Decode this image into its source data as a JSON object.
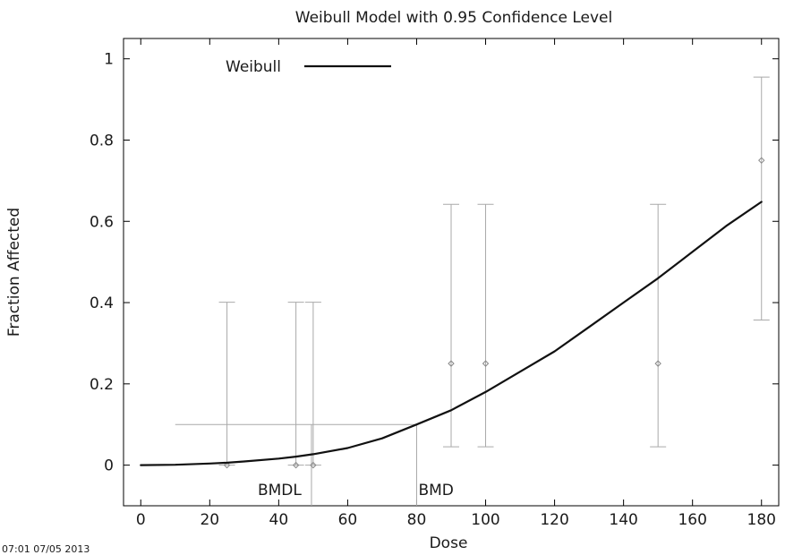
{
  "chart_data": {
    "type": "line",
    "title": "Weibull Model with 0.95 Confidence Level",
    "xlabel": "Dose",
    "ylabel": "Fraction Affected",
    "xlim": [
      -5,
      185
    ],
    "ylim": [
      -0.1,
      1.05
    ],
    "xticks": [
      0,
      20,
      40,
      60,
      80,
      100,
      120,
      140,
      160,
      180
    ],
    "yticks": [
      0,
      0.2,
      0.4,
      0.6,
      0.8,
      1
    ],
    "xtick_labels": [
      "0",
      "20",
      "40",
      "60",
      "80",
      "100",
      "120",
      "140",
      "160",
      "180"
    ],
    "ytick_labels": [
      "0",
      "0.2",
      "0.4",
      "0.6",
      "0.8",
      "1"
    ],
    "legend": {
      "position": "top-left",
      "entries": [
        "Weibull"
      ]
    },
    "series": [
      {
        "name": "Weibull",
        "x": [
          0,
          10,
          20,
          25,
          30,
          40,
          45,
          50,
          60,
          70,
          80,
          90,
          100,
          110,
          120,
          130,
          140,
          150,
          160,
          170,
          180
        ],
        "y": [
          0,
          0.001,
          0.004,
          0.006,
          0.009,
          0.016,
          0.021,
          0.027,
          0.042,
          0.066,
          0.1,
          0.135,
          0.18,
          0.23,
          0.28,
          0.34,
          0.4,
          0.46,
          0.525,
          0.59,
          0.648
        ]
      }
    ],
    "observations": {
      "x": [
        25,
        45,
        50,
        90,
        100,
        150,
        180
      ],
      "y": [
        0,
        0,
        0,
        0.25,
        0.25,
        0.25,
        0.75
      ],
      "lower": [
        0,
        0,
        0,
        0.045,
        0.045,
        0.045,
        0.357
      ],
      "upper": [
        0.401,
        0.401,
        0.401,
        0.642,
        0.642,
        0.642,
        0.955
      ]
    },
    "bmr": 0.1,
    "bmd": 80,
    "bmdl": 49.5,
    "bmr_line_start": 10,
    "annotations": [
      {
        "text": "BMDL",
        "x": 49.5
      },
      {
        "text": "BMD",
        "x": 80
      }
    ],
    "grid": false
  },
  "footer_text": "07:01 07/05 2013"
}
